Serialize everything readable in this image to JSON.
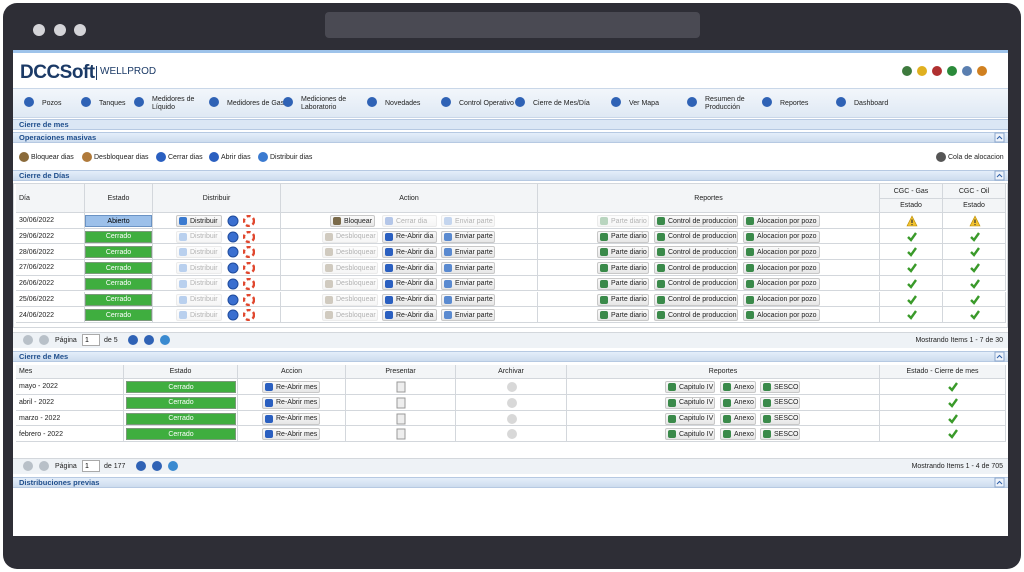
{
  "header": {
    "logo": "DCCSoft",
    "logo_sub": "WELLPROD"
  },
  "nav": [
    "Pozos",
    "Tanques",
    "Medidores de Líquido",
    "Medidores de Gas",
    "Mediciones de Laboratorio",
    "Novedades",
    "Control Operativo",
    "Cierre de Mes/Día",
    "Ver Mapa",
    "Resumen de Producción",
    "Reportes",
    "Dashboard"
  ],
  "page_title": "Cierre de mes",
  "mass_ops": {
    "title": "Operaciones masivas",
    "actions": [
      "Bloquear dias",
      "Desbloquear dias",
      "Cerrar dias",
      "Abrir dias",
      "Distribuir dias"
    ],
    "queue": "Cola de alocacion"
  },
  "days": {
    "title": "Cierre de Días",
    "columns": [
      "Día",
      "Estado",
      "Distribuir",
      "Action",
      "Reportes",
      "CGC - Gas",
      "CGC - Oil"
    ],
    "sub_columns": [
      "Estado",
      "Estado"
    ],
    "buttons": {
      "distribute": "Distribuir",
      "send": "Enviar parte",
      "daily": "Parte diario",
      "control": "Control de produccion",
      "allocation": "Alocacion por pozo"
    },
    "rows": [
      {
        "date": "30/06/2022",
        "status": "Abierto",
        "lock": "Bloquear",
        "day": "Cerrar dia",
        "open": true
      },
      {
        "date": "29/06/2022",
        "status": "Cerrado",
        "lock": "Desbloquear",
        "day": "Re-Abrir dia",
        "open": false
      },
      {
        "date": "28/06/2022",
        "status": "Cerrado",
        "lock": "Desbloquear",
        "day": "Re-Abrir dia",
        "open": false
      },
      {
        "date": "27/06/2022",
        "status": "Cerrado",
        "lock": "Desbloquear",
        "day": "Re-Abrir dia",
        "open": false
      },
      {
        "date": "26/06/2022",
        "status": "Cerrado",
        "lock": "Desbloquear",
        "day": "Re-Abrir dia",
        "open": false
      },
      {
        "date": "25/06/2022",
        "status": "Cerrado",
        "lock": "Desbloquear",
        "day": "Re-Abrir dia",
        "open": false
      },
      {
        "date": "24/06/2022",
        "status": "Cerrado",
        "lock": "Desbloquear",
        "day": "Re-Abrir dia",
        "open": false
      }
    ],
    "pager": {
      "label": "Página",
      "page": "1",
      "of": "de 5",
      "showing": "Mostrando Items 1 - 7 de 30"
    }
  },
  "months": {
    "title": "Cierre de Mes",
    "columns": [
      "Mes",
      "Estado",
      "Accion",
      "Presentar",
      "Archivar",
      "Reportes",
      "Estado - Cierre de mes"
    ],
    "buttons": {
      "reopen": "Re-Abrir mes",
      "cap4": "Capitulo IV",
      "annex": "Anexo",
      "sesco": "SESCO"
    },
    "rows": [
      {
        "month": "mayo - 2022",
        "status": "Cerrado"
      },
      {
        "month": "abril - 2022",
        "status": "Cerrado"
      },
      {
        "month": "marzo - 2022",
        "status": "Cerrado"
      },
      {
        "month": "febrero - 2022",
        "status": "Cerrado"
      }
    ],
    "pager": {
      "label": "Página",
      "page": "1",
      "of": "de 177",
      "showing": "Mostrando Items 1 - 4 de 705"
    }
  },
  "previous": {
    "title": "Distribuciones previas"
  }
}
